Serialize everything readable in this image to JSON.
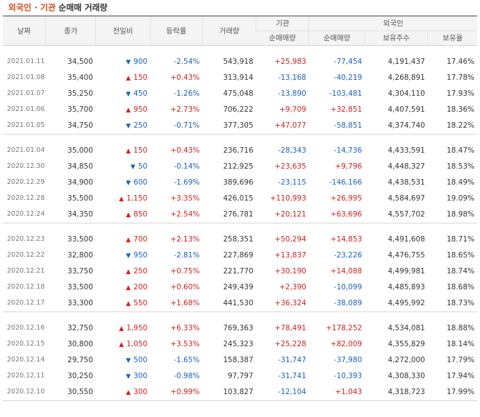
{
  "title": {
    "accent": "외국인 · 기관",
    "rest": " 순매매 거래량"
  },
  "colors": {
    "up": "#d0201b",
    "down": "#1a5fbf",
    "accent": "#d24a18"
  },
  "headers": {
    "date": "날짜",
    "close": "종가",
    "change": "전일비",
    "rate": "등락률",
    "volume": "거래량",
    "inst_group": "기관",
    "inst_net": "순매매량",
    "foreign_group": "외국인",
    "foreign_net": "순매매량",
    "foreign_hold": "보유주수",
    "foreign_ratio": "보유율"
  },
  "rows": [
    {
      "date": "2021.01.11",
      "close": "34,500",
      "dir": "down",
      "change": "900",
      "rate": "-2.54%",
      "volume": "543,918",
      "inst": "+25,983",
      "foreign": "-77,454",
      "hold": "4,191,437",
      "ratio": "17.46%"
    },
    {
      "date": "2021.01.08",
      "close": "35,400",
      "dir": "up",
      "change": "150",
      "rate": "+0.43%",
      "volume": "313,914",
      "inst": "-13,168",
      "foreign": "-40,219",
      "hold": "4,268,891",
      "ratio": "17.78%"
    },
    {
      "date": "2021.01.07",
      "close": "35,250",
      "dir": "down",
      "change": "450",
      "rate": "-1.26%",
      "volume": "475,048",
      "inst": "-13,890",
      "foreign": "-103,481",
      "hold": "4,304,110",
      "ratio": "17.93%"
    },
    {
      "date": "2021.01.06",
      "close": "35,700",
      "dir": "up",
      "change": "950",
      "rate": "+2.73%",
      "volume": "706,222",
      "inst": "+9,709",
      "foreign": "+32,851",
      "hold": "4,407,591",
      "ratio": "18.36%"
    },
    {
      "date": "2021.01.05",
      "close": "34,750",
      "dir": "down",
      "change": "250",
      "rate": "-0.71%",
      "volume": "377,305",
      "inst": "+47,077",
      "foreign": "-58,851",
      "hold": "4,374,740",
      "ratio": "18.22%"
    },
    {
      "date": "2021.01.04",
      "close": "35,000",
      "dir": "up",
      "change": "150",
      "rate": "+0.43%",
      "volume": "236,716",
      "inst": "-28,343",
      "foreign": "-14,736",
      "hold": "4,433,591",
      "ratio": "18.47%"
    },
    {
      "date": "2020.12.30",
      "close": "34,850",
      "dir": "down",
      "change": "50",
      "rate": "-0.14%",
      "volume": "212,925",
      "inst": "+23,635",
      "foreign": "+9,796",
      "hold": "4,448,327",
      "ratio": "18.53%"
    },
    {
      "date": "2020.12.29",
      "close": "34,900",
      "dir": "down",
      "change": "600",
      "rate": "-1.69%",
      "volume": "389,696",
      "inst": "-23,115",
      "foreign": "-146,166",
      "hold": "4,438,531",
      "ratio": "18.49%"
    },
    {
      "date": "2020.12.28",
      "close": "35,500",
      "dir": "up",
      "change": "1,150",
      "rate": "+3.35%",
      "volume": "426,015",
      "inst": "+110,993",
      "foreign": "+26,995",
      "hold": "4,584,697",
      "ratio": "19.09%"
    },
    {
      "date": "2020.12.24",
      "close": "34,350",
      "dir": "up",
      "change": "850",
      "rate": "+2.54%",
      "volume": "276,781",
      "inst": "+20,121",
      "foreign": "+63,696",
      "hold": "4,557,702",
      "ratio": "18.98%"
    },
    {
      "date": "2020.12.23",
      "close": "33,500",
      "dir": "up",
      "change": "700",
      "rate": "+2.13%",
      "volume": "258,351",
      "inst": "+50,294",
      "foreign": "+14,853",
      "hold": "4,491,608",
      "ratio": "18.71%"
    },
    {
      "date": "2020.12.22",
      "close": "32,800",
      "dir": "down",
      "change": "950",
      "rate": "-2.81%",
      "volume": "227,869",
      "inst": "+13,837",
      "foreign": "-23,226",
      "hold": "4,476,755",
      "ratio": "18.65%"
    },
    {
      "date": "2020.12.21",
      "close": "33,750",
      "dir": "up",
      "change": "250",
      "rate": "+0.75%",
      "volume": "221,770",
      "inst": "+30,190",
      "foreign": "+14,088",
      "hold": "4,499,981",
      "ratio": "18.74%"
    },
    {
      "date": "2020.12.18",
      "close": "33,500",
      "dir": "up",
      "change": "200",
      "rate": "+0.60%",
      "volume": "249,439",
      "inst": "+2,390",
      "foreign": "-10,099",
      "hold": "4,485,893",
      "ratio": "18.68%"
    },
    {
      "date": "2020.12.17",
      "close": "33,300",
      "dir": "up",
      "change": "550",
      "rate": "+1.68%",
      "volume": "441,530",
      "inst": "+36,324",
      "foreign": "-38,089",
      "hold": "4,495,992",
      "ratio": "18.73%"
    },
    {
      "date": "2020.12.16",
      "close": "32,750",
      "dir": "up",
      "change": "1,950",
      "rate": "+6.33%",
      "volume": "769,363",
      "inst": "+78,491",
      "foreign": "+178,252",
      "hold": "4,534,081",
      "ratio": "18.88%"
    },
    {
      "date": "2020.12.15",
      "close": "30,800",
      "dir": "up",
      "change": "1,050",
      "rate": "+3.53%",
      "volume": "245,323",
      "inst": "+25,228",
      "foreign": "+82,009",
      "hold": "4,355,829",
      "ratio": "18.14%"
    },
    {
      "date": "2020.12.14",
      "close": "29,750",
      "dir": "down",
      "change": "500",
      "rate": "-1.65%",
      "volume": "158,387",
      "inst": "-31,747",
      "foreign": "-37,980",
      "hold": "4,272,000",
      "ratio": "17.79%"
    },
    {
      "date": "2020.12.11",
      "close": "30,250",
      "dir": "down",
      "change": "300",
      "rate": "-0.98%",
      "volume": "97,797",
      "inst": "-31,741",
      "foreign": "-10,393",
      "hold": "4,308,330",
      "ratio": "17.94%"
    },
    {
      "date": "2020.12.10",
      "close": "30,550",
      "dir": "up",
      "change": "300",
      "rate": "+0.99%",
      "volume": "103,827",
      "inst": "-12,104",
      "foreign": "+1,043",
      "hold": "4,318,723",
      "ratio": "17.99%"
    }
  ]
}
